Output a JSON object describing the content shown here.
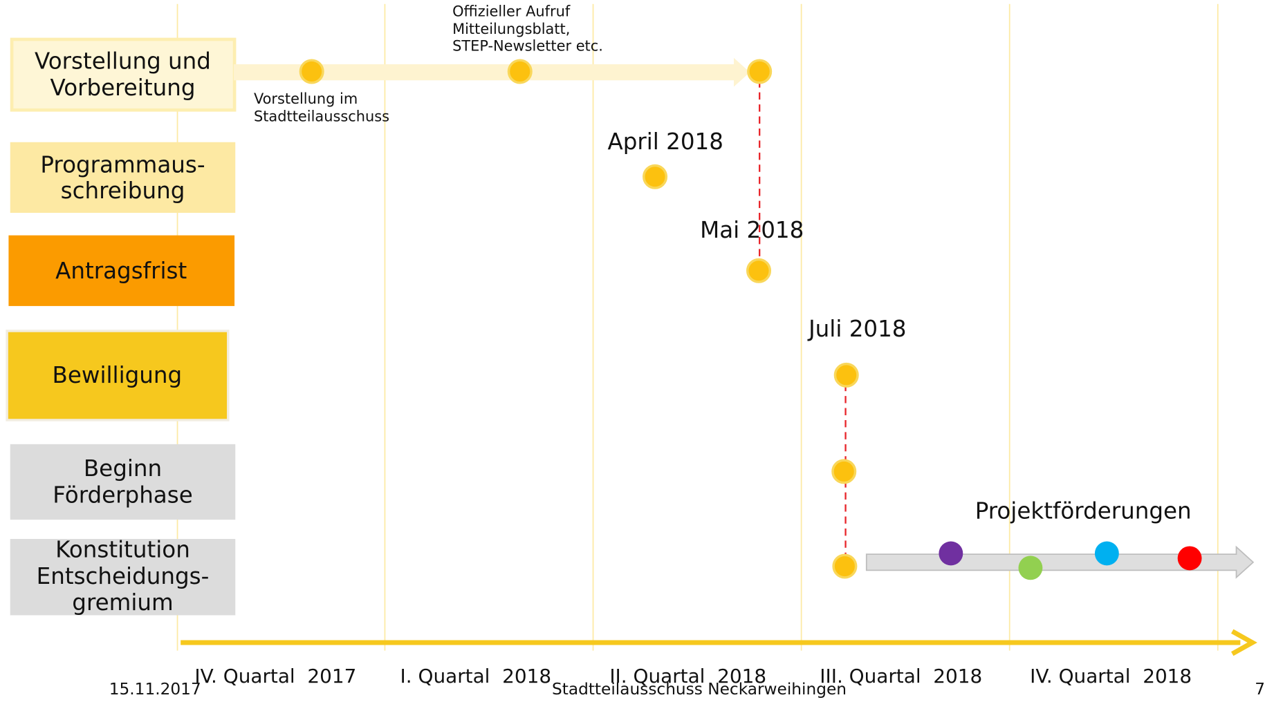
{
  "phases": [
    [
      "Vorstellung und",
      "Vorbereitung"
    ],
    [
      "Programmaus-",
      "schreibung"
    ],
    [
      "Antragsfrist"
    ],
    [
      "Bewilligung"
    ],
    [
      "Beginn",
      "Förderphase"
    ],
    [
      "Konstitution",
      "Entscheidungs-",
      "gremium"
    ]
  ],
  "quarters": [
    "IV. Quartal  2017",
    "I. Quartal  2018",
    "II. Quartal  2018",
    "III. Quartal  2018",
    "IV. Quartal  2018"
  ],
  "annotations": {
    "aufruf": [
      "Offizieller Aufruf",
      "Mitteilungsblatt,",
      "STEP-Newsletter etc."
    ],
    "vorstellung": [
      "Vorstellung im",
      "Stadtteilausschuss"
    ],
    "april": "April 2018",
    "mai": "Mai 2018",
    "juli": "Juli 2018",
    "projekt": "Projektförderungen"
  },
  "footer": {
    "date": "15.11.2017",
    "title": "Stadtteilausschuss Neckarweihingen",
    "page": "7"
  }
}
